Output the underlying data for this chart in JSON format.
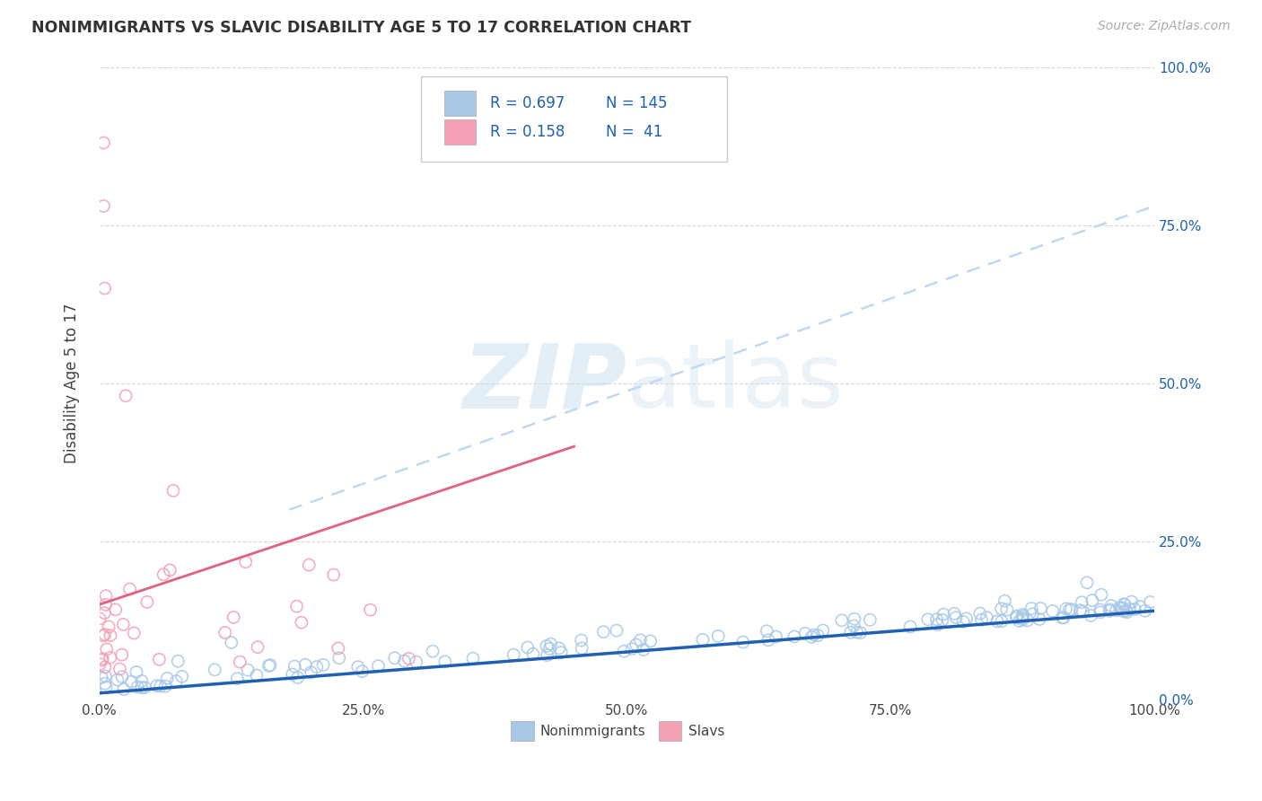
{
  "title": "NONIMMIGRANTS VS SLAVIC DISABILITY AGE 5 TO 17 CORRELATION CHART",
  "source": "Source: ZipAtlas.com",
  "ylabel": "Disability Age 5 to 17",
  "xlim": [
    0,
    1
  ],
  "ylim": [
    0,
    1
  ],
  "xticks": [
    0.0,
    0.25,
    0.5,
    0.75,
    1.0
  ],
  "yticks": [
    0.0,
    0.25,
    0.5,
    0.75,
    1.0
  ],
  "xticklabels": [
    "0.0%",
    "25.0%",
    "50.0%",
    "75.0%",
    "100.0%"
  ],
  "right_yticklabels": [
    "0.0%",
    "25.0%",
    "50.0%",
    "75.0%",
    "100.0%"
  ],
  "blue_scatter_color": "#a8c8e8",
  "pink_scatter_color": "#f4a0b5",
  "blue_line_color": "#2060b0",
  "pink_line_color": "#e06080",
  "dashed_line_color": "#c0d8f0",
  "right_tick_color": "#2060b0",
  "legend_R_blue": "0.697",
  "legend_N_blue": "145",
  "legend_R_pink": "0.158",
  "legend_N_pink": "41",
  "legend_label_blue": "Nonimmigrants",
  "legend_label_pink": "Slavs",
  "background_color": "#ffffff",
  "grid_color": "#d8d8d8",
  "watermark_color": "#c8dff0",
  "watermark_alpha": 0.5,
  "blue_trend_x0": 0.0,
  "blue_trend_y0": 0.01,
  "blue_trend_x1": 1.0,
  "blue_trend_y1": 0.14,
  "pink_trend_x0": 0.0,
  "pink_trend_y0": 0.15,
  "pink_trend_x1": 0.45,
  "pink_trend_y1": 0.4,
  "dash_trend_x0": 0.18,
  "dash_trend_y0": 0.3,
  "dash_trend_x1": 1.0,
  "dash_trend_y1": 0.78
}
